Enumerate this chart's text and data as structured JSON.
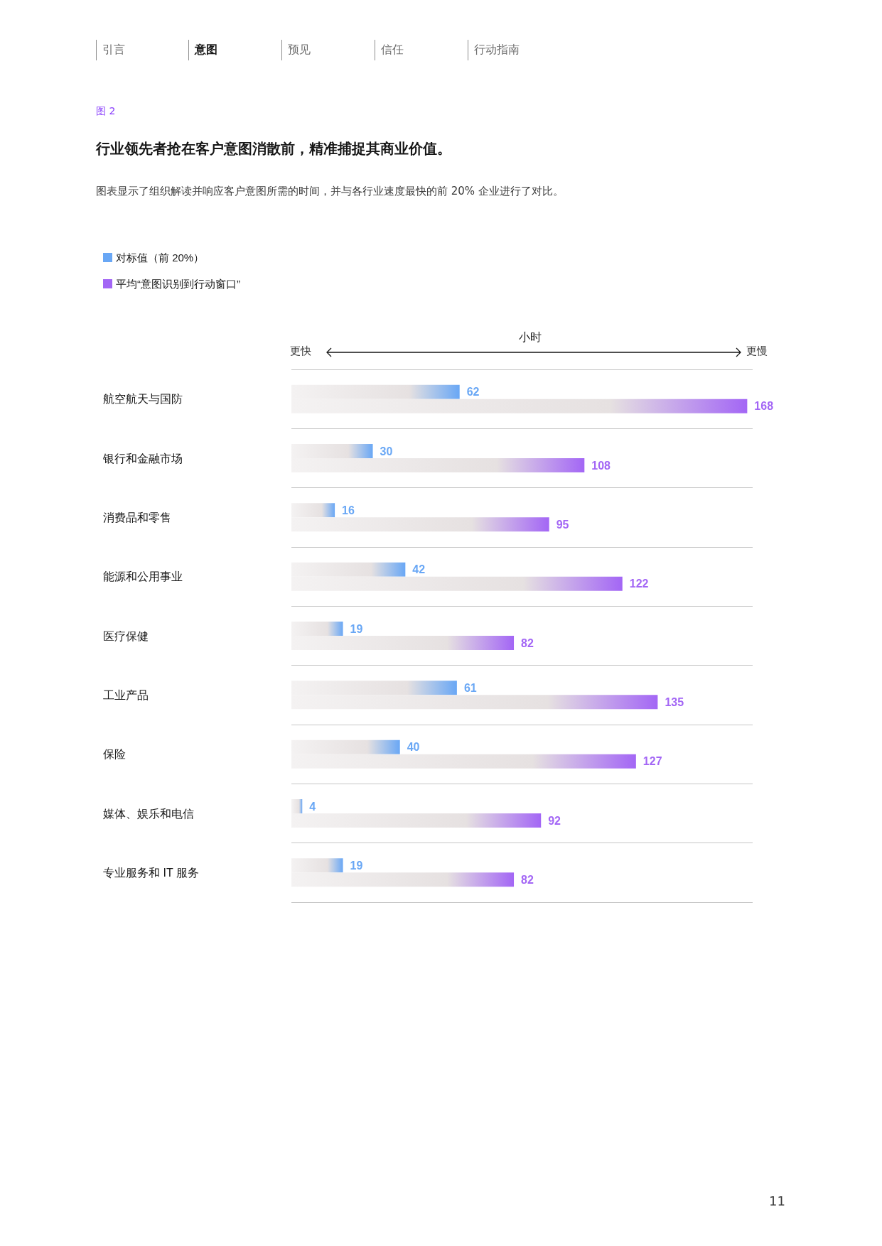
{
  "chart_data": {
    "type": "bar",
    "orientation": "horizontal",
    "title": "行业领先者抢在客户意图消散前，精准捕捉其商业价值。",
    "subtitle": "图表显示了组织解读并响应客户意图所需的时间，并与各行业速度最快的前 20% 企业进行了对比。",
    "xlabel": "小时",
    "annotations": [
      "引言",
      "意图",
      "预见",
      "信任",
      "行动指南",
      "图 2",
      "更快",
      "更慢",
      "11"
    ],
    "categories": [
      "航空航天与国防",
      "银行和金融市场",
      "消费品和零售",
      "能源和公用事业",
      "医疗保健",
      "工业产品",
      "保险",
      "媒体、娱乐和电信",
      "专业服务和 IT 服务"
    ],
    "series": [
      {
        "name": "对标值（前 20%）",
        "color": "#69a7f5",
        "values": [
          62,
          30,
          16,
          42,
          19,
          61,
          40,
          4,
          19
        ]
      },
      {
        "name": "平均“意图识别到行动窗口”",
        "color": "#a366f5",
        "values": [
          168,
          108,
          95,
          122,
          82,
          135,
          127,
          92,
          82
        ]
      }
    ],
    "xlim": [
      0,
      170
    ],
    "data_labels": true,
    "grid": "y",
    "legend": "top left"
  }
}
